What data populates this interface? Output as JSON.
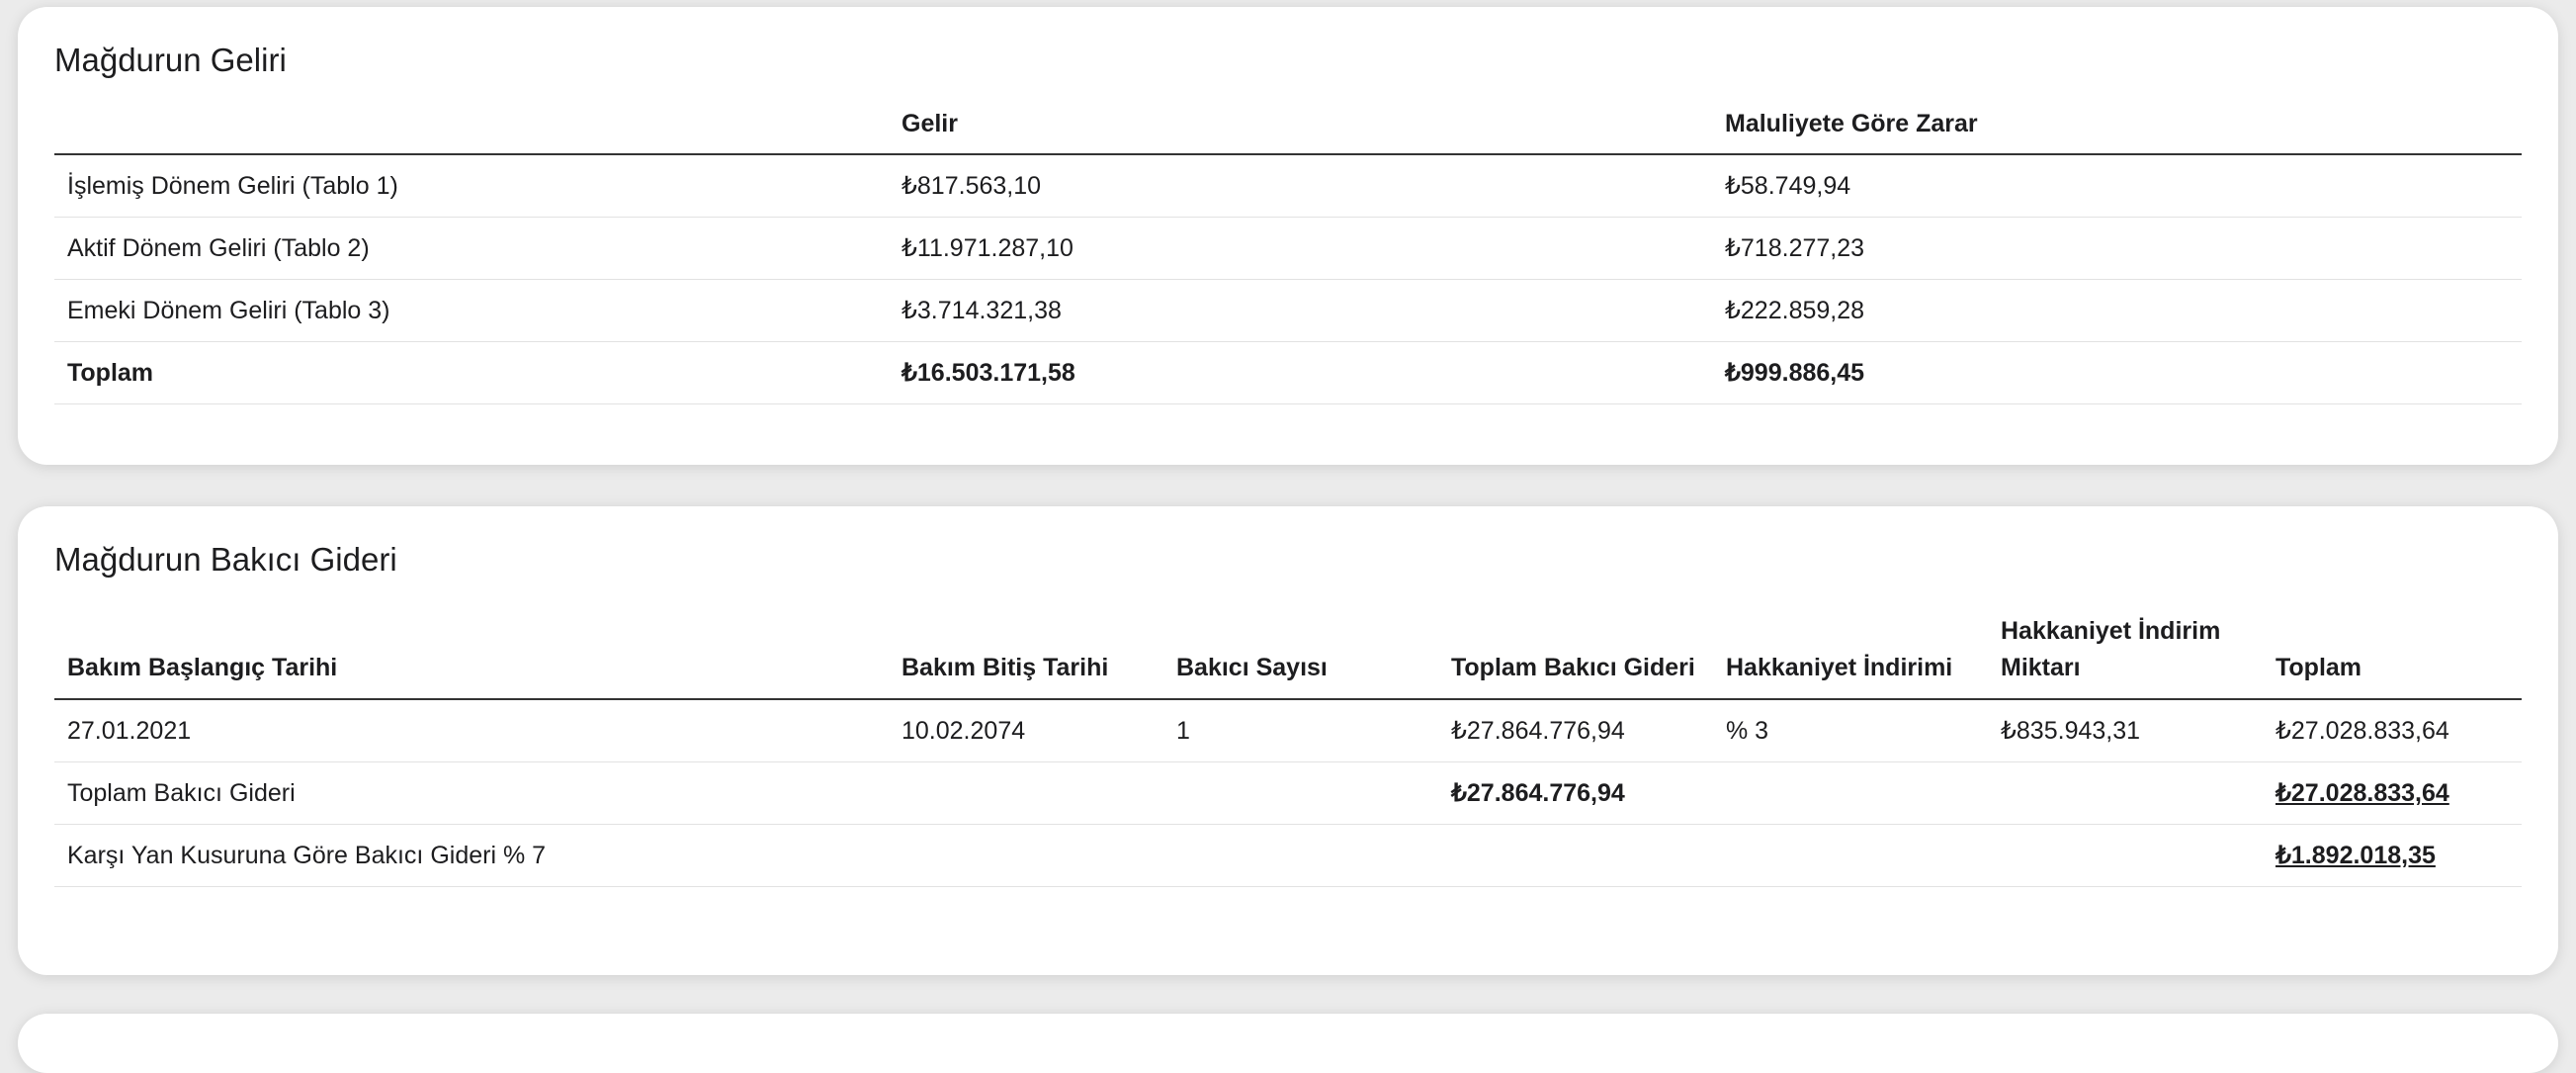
{
  "income": {
    "title": "Mağdurun Geliri",
    "headers": [
      "Gelir",
      "Maluliyete Göre Zarar"
    ],
    "rows": [
      [
        "İşlemiş Dönem Geliri (Tablo 1)",
        "₺817.563,10",
        "₺58.749,94"
      ],
      [
        "Aktif Dönem Geliri (Tablo 2)",
        "₺11.971.287,10",
        "₺718.277,23"
      ],
      [
        "Emeki Dönem Geliri (Tablo 3)",
        "₺3.714.321,38",
        "₺222.859,28"
      ]
    ],
    "total": [
      "Toplam",
      "₺16.503.171,58",
      "₺999.886,45"
    ]
  },
  "care": {
    "title": "Mağdurun Bakıcı Gideri",
    "headers": [
      "Bakım Başlangıç Tarihi",
      "Bakım Bitiş Tarihi",
      "Bakıcı Sayısı",
      "Toplam Bakıcı Gideri",
      "Hakkaniyet İndirimi",
      "Hakkaniyet İndirim Miktarı",
      "Toplam"
    ],
    "rows": [
      [
        "27.01.2021",
        "10.02.2074",
        "1",
        "₺27.864.776,94",
        "% 3",
        "₺835.943,31",
        "₺27.028.833,64"
      ]
    ],
    "total_label": "Toplam Bakıcı Gideri",
    "total_cost": "₺27.864.776,94",
    "total": "₺27.028.833,64",
    "fault_label": "Karşı Yan Kusuruna Göre Bakıcı Gideri % 7",
    "fault_total": "₺1.892.018,35"
  }
}
